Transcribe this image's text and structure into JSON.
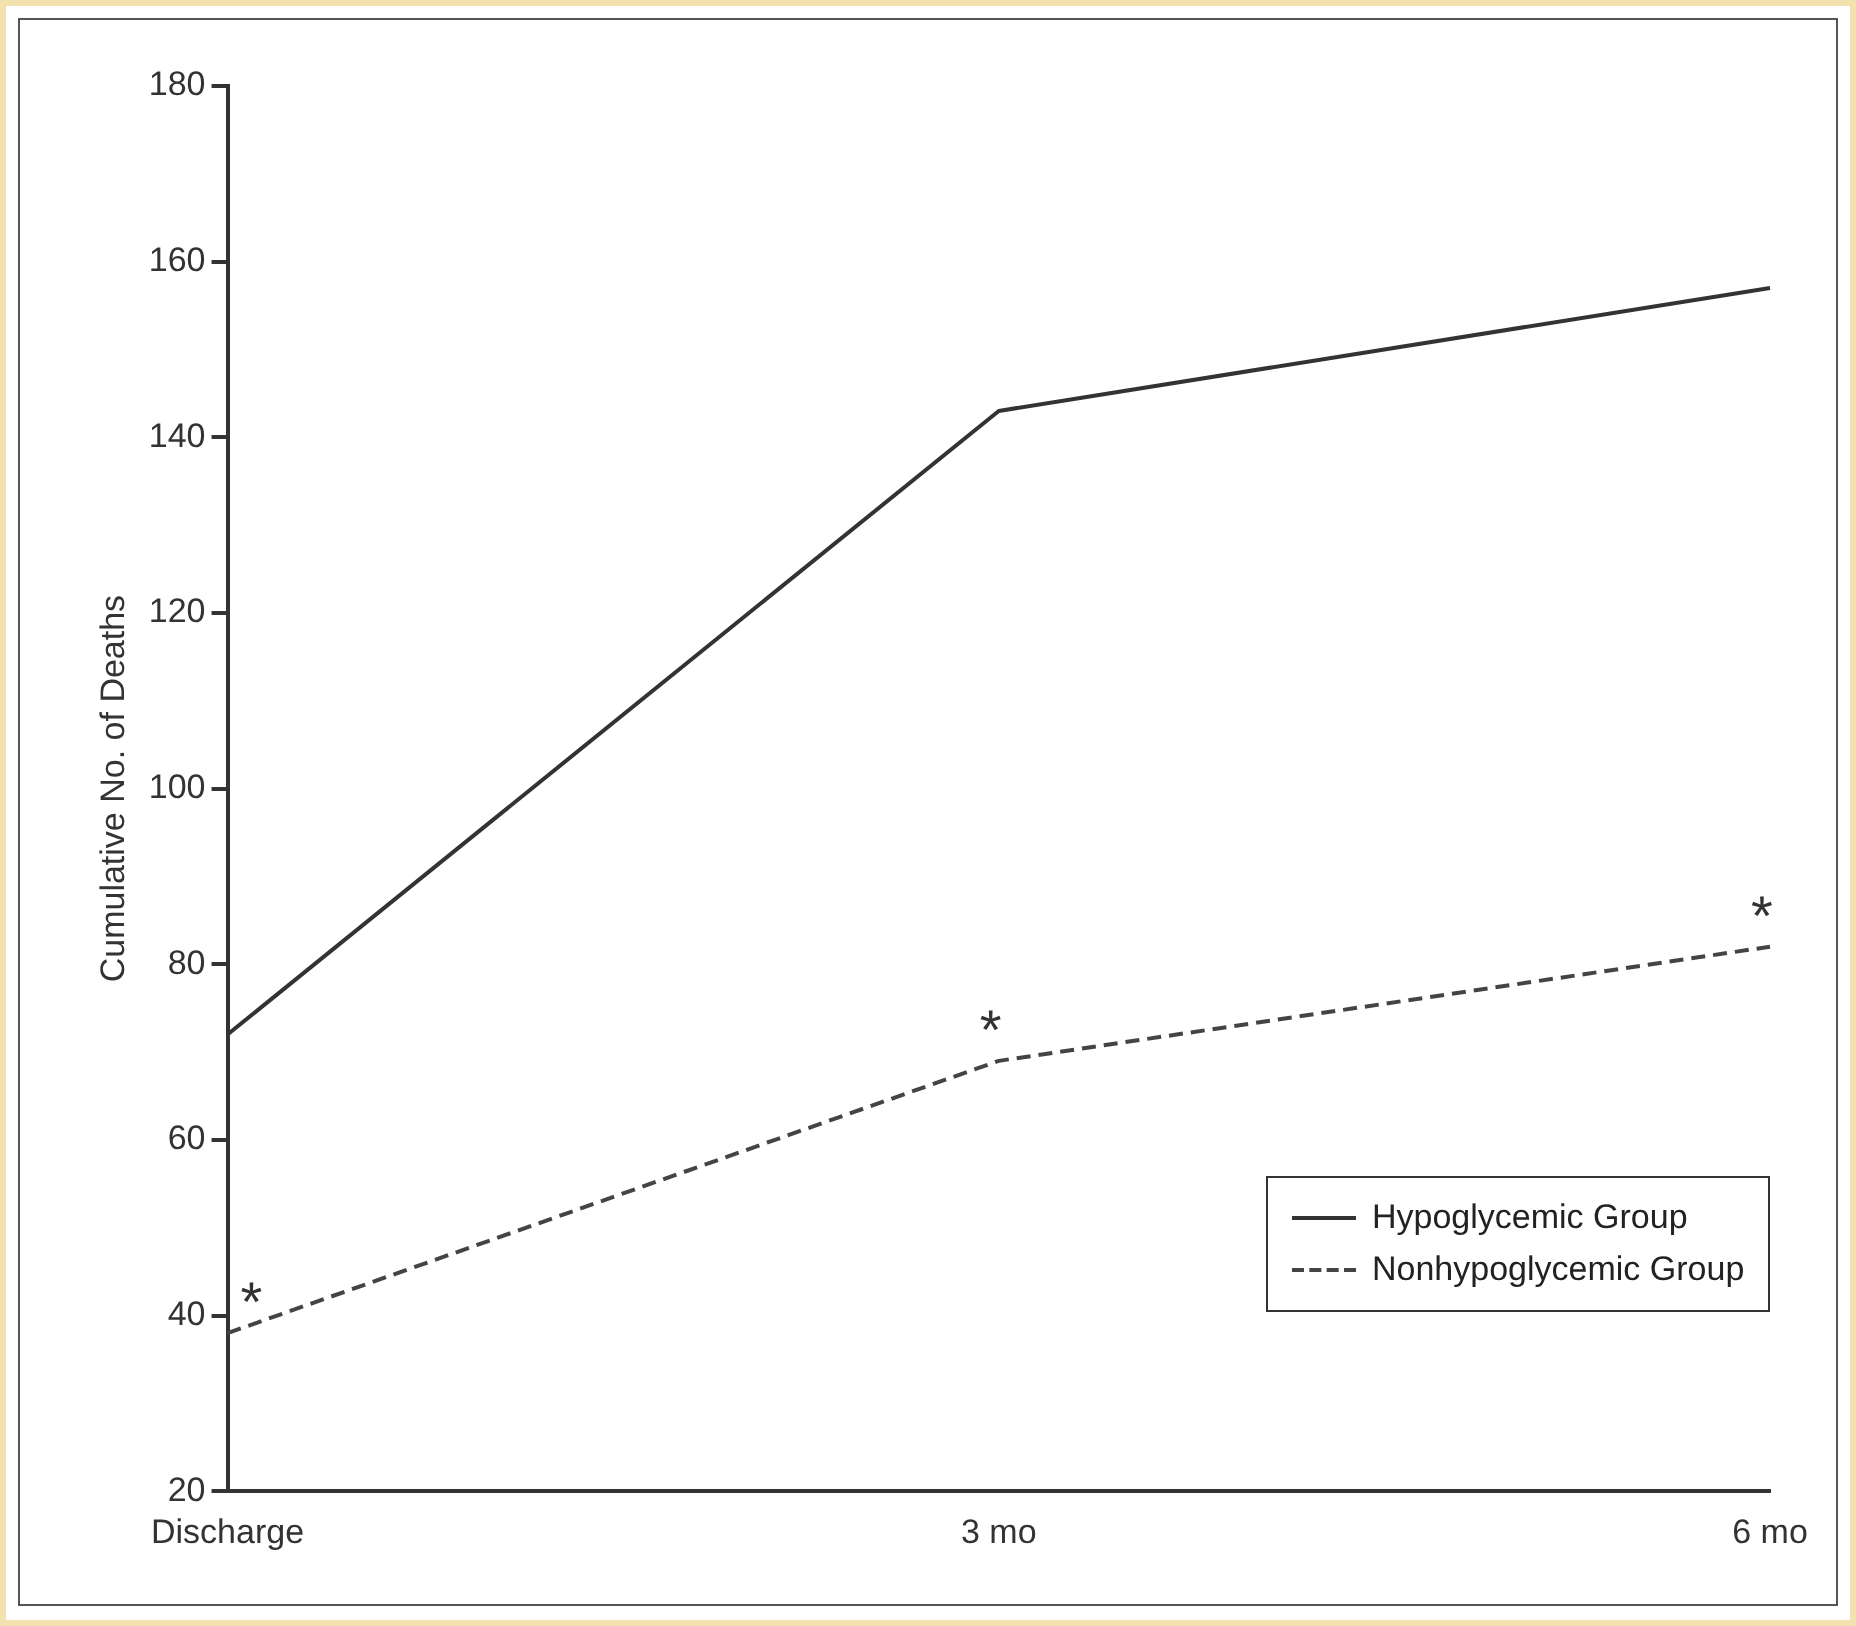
{
  "chart_data": {
    "type": "line",
    "ylabel": "Cumulative No. of Deaths",
    "categories": [
      "Discharge",
      "3 mo",
      "6 mo"
    ],
    "series": [
      {
        "name": "Hypoglycemic Group",
        "color": "#333333",
        "values": [
          72,
          143,
          157
        ],
        "line_style": "solid"
      },
      {
        "name": "Nonhypoglycemic Group",
        "color": "#444444",
        "values": [
          38,
          69,
          82
        ],
        "line_style": "dashed"
      }
    ],
    "ylim": [
      20,
      180
    ],
    "yticks": [
      20,
      40,
      60,
      80,
      100,
      120,
      140,
      160,
      180
    ],
    "grid": false,
    "legend": "bottom right",
    "marker": "none",
    "annotations": [
      {
        "text": "*",
        "x": "Discharge",
        "y": 38
      },
      {
        "text": "*",
        "x": "3 mo",
        "y": 69
      },
      {
        "text": "*",
        "x": "6 mo",
        "y": 82
      }
    ]
  }
}
